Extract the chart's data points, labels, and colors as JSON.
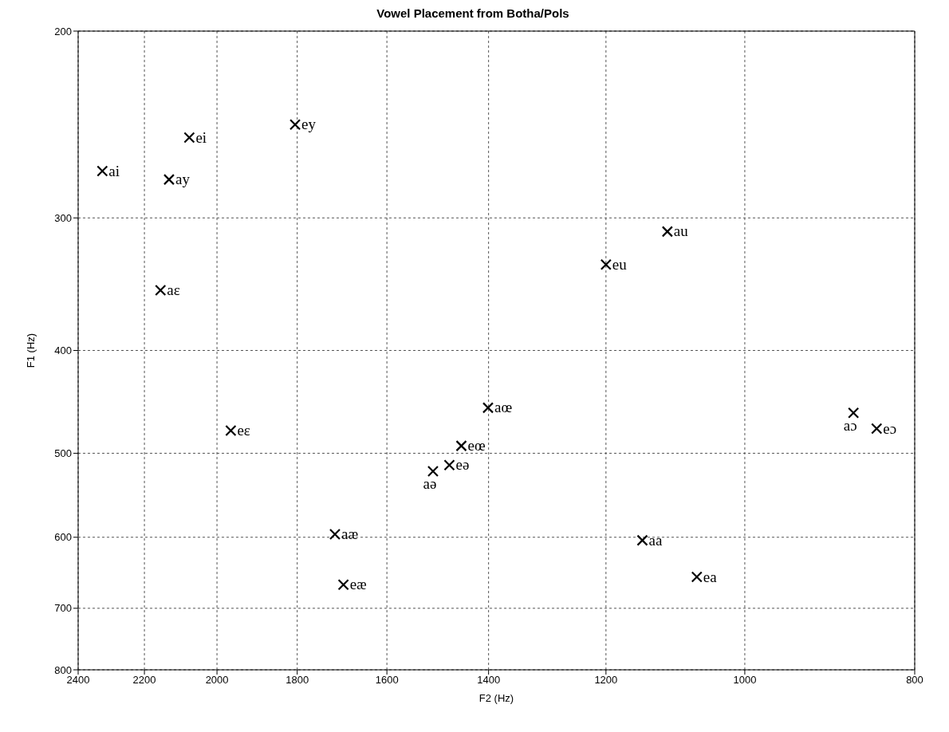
{
  "chart_data": {
    "type": "scatter",
    "title": "Vowel Placement from Botha/Pols",
    "xlabel": "F2 (Hz)",
    "ylabel": "F1 (Hz)",
    "log": "xy",
    "xlim": [
      2400,
      800
    ],
    "ylim": [
      800,
      200
    ],
    "xticks": [
      2400,
      2200,
      2000,
      1800,
      1600,
      1400,
      1200,
      1000,
      800
    ],
    "yticks": [
      200,
      300,
      400,
      500,
      600,
      700,
      800
    ],
    "grid": true,
    "marker": "cross",
    "series": [
      {
        "color": "#000000",
        "x": [
          2325,
          2074,
          2130,
          1805,
          2154,
          1964,
          1107,
          1200,
          1401,
          1451,
          1474,
          1506,
          1713,
          1694,
          1144,
          867,
          841,
          1065
        ],
        "values": [
          271,
          252,
          276,
          245,
          351,
          476,
          309,
          332,
          453,
          492,
          513,
          520,
          596,
          665,
          604,
          458,
          474,
          654
        ]
      }
    ],
    "annotations": [
      {
        "text": "ai",
        "x": 2325,
        "y": 271
      },
      {
        "text": "ei",
        "x": 2074,
        "y": 252
      },
      {
        "text": "ay",
        "x": 2130,
        "y": 276
      },
      {
        "text": "ey",
        "x": 1805,
        "y": 245
      },
      {
        "text": "aɛ",
        "x": 2154,
        "y": 351
      },
      {
        "text": "eɛ",
        "x": 1964,
        "y": 476
      },
      {
        "text": "au",
        "x": 1107,
        "y": 309
      },
      {
        "text": "eu",
        "x": 1200,
        "y": 332
      },
      {
        "text": "aœ",
        "x": 1401,
        "y": 453
      },
      {
        "text": "eœ",
        "x": 1451,
        "y": 492
      },
      {
        "text": "eə",
        "x": 1474,
        "y": 513
      },
      {
        "text": "aə",
        "x": 1506,
        "y": 520
      },
      {
        "text": "aæ",
        "x": 1713,
        "y": 596
      },
      {
        "text": "eæ",
        "x": 1694,
        "y": 665
      },
      {
        "text": "aa",
        "x": 1144,
        "y": 604
      },
      {
        "text": "aɔ",
        "x": 867,
        "y": 458
      },
      {
        "text": "eɔ",
        "x": 841,
        "y": 474
      },
      {
        "text": "ea",
        "x": 1065,
        "y": 654
      }
    ]
  }
}
